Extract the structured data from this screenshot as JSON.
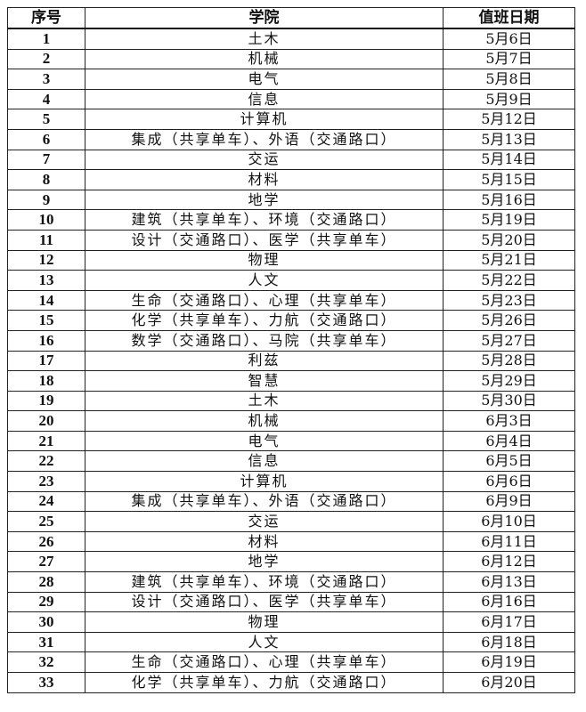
{
  "table": {
    "headers": [
      "序号",
      "学院",
      "值班日期"
    ],
    "rows": [
      [
        "1",
        "土木",
        "5月6日"
      ],
      [
        "2",
        "机械",
        "5月7日"
      ],
      [
        "3",
        "电气",
        "5月8日"
      ],
      [
        "4",
        "信息",
        "5月9日"
      ],
      [
        "5",
        "计算机",
        "5月12日"
      ],
      [
        "6",
        "集成（共享单车）、外语（交通路口）",
        "5月13日"
      ],
      [
        "7",
        "交运",
        "5月14日"
      ],
      [
        "8",
        "材料",
        "5月15日"
      ],
      [
        "9",
        "地学",
        "5月16日"
      ],
      [
        "10",
        "建筑（共享单车）、环境（交通路口）",
        "5月19日"
      ],
      [
        "11",
        "设计（交通路口）、医学（共享单车）",
        "5月20日"
      ],
      [
        "12",
        "物理",
        "5月21日"
      ],
      [
        "13",
        "人文",
        "5月22日"
      ],
      [
        "14",
        "生命（交通路口）、心理（共享单车）",
        "5月23日"
      ],
      [
        "15",
        "化学（共享单车）、力航（交通路口）",
        "5月26日"
      ],
      [
        "16",
        "数学（交通路口）、马院（共享单车）",
        "5月27日"
      ],
      [
        "17",
        "利兹",
        "5月28日"
      ],
      [
        "18",
        "智慧",
        "5月29日"
      ],
      [
        "19",
        "土木",
        "5月30日"
      ],
      [
        "20",
        "机械",
        "6月3日"
      ],
      [
        "21",
        "电气",
        "6月4日"
      ],
      [
        "22",
        "信息",
        "6月5日"
      ],
      [
        "23",
        "计算机",
        "6月6日"
      ],
      [
        "24",
        "集成（共享单车）、外语（交通路口）",
        "6月9日"
      ],
      [
        "25",
        "交运",
        "6月10日"
      ],
      [
        "26",
        "材料",
        "6月11日"
      ],
      [
        "27",
        "地学",
        "6月12日"
      ],
      [
        "28",
        "建筑（共享单车）、环境（交通路口）",
        "6月13日"
      ],
      [
        "29",
        "设计（交通路口）、医学（共享单车）",
        "6月16日"
      ],
      [
        "30",
        "物理",
        "6月17日"
      ],
      [
        "31",
        "人文",
        "6月18日"
      ],
      [
        "32",
        "生命（交通路口）、心理（共享单车）",
        "6月19日"
      ],
      [
        "33",
        "化学（共享单车）、力航（交通路口）",
        "6月20日"
      ]
    ]
  }
}
